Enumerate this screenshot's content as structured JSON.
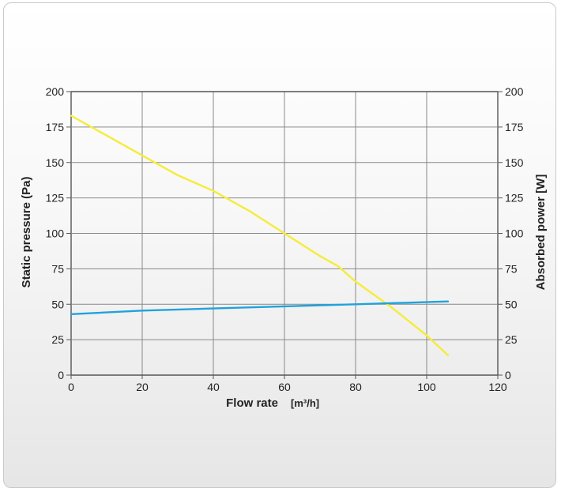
{
  "chart_data": {
    "type": "line",
    "title": "",
    "xlabel": "Flow rate",
    "xlabel_unit": "[m³/h]",
    "ylabel_left": "Static pressure (Pa)",
    "ylabel_right": "Absorbed power [W]",
    "xlim": [
      0,
      120
    ],
    "ylim": [
      0,
      200
    ],
    "x_ticks": [
      "0",
      "20",
      "40",
      "60",
      "80",
      "100",
      "120"
    ],
    "y_ticks": [
      "0",
      "25",
      "50",
      "75",
      "100",
      "125",
      "150",
      "175",
      "200"
    ],
    "grid": true,
    "legend": "none",
    "series": [
      {
        "axis": "left",
        "color": "#f5ec3a",
        "x": [
          0,
          10,
          20,
          30,
          40,
          50,
          60,
          70,
          75,
          80,
          90,
          100,
          106
        ],
        "y": [
          183,
          169,
          155,
          141,
          130,
          116,
          100,
          84,
          77,
          66,
          48,
          28,
          14
        ]
      },
      {
        "axis": "right",
        "color": "#1fa3dc",
        "x": [
          0,
          20,
          40,
          60,
          80,
          106
        ],
        "y": [
          43,
          45.5,
          47,
          48.5,
          50,
          52
        ]
      }
    ]
  },
  "colors": {
    "grid": "#888888",
    "axis": "#555555",
    "text": "#222222"
  }
}
